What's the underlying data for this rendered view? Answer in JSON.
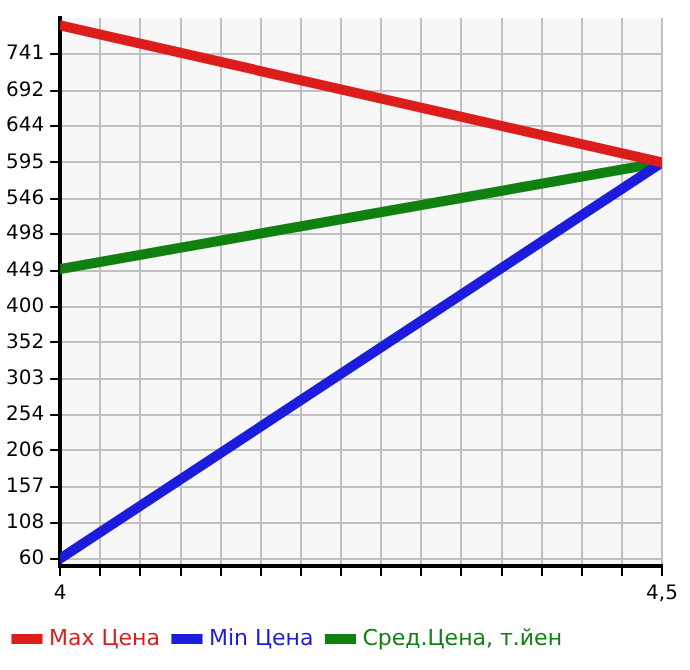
{
  "chart_data": {
    "type": "line",
    "x": [
      4,
      4.5
    ],
    "series": [
      {
        "name": "Max Цена",
        "color": "#dd1c1c",
        "values": [
          780,
          595
        ]
      },
      {
        "name": "Min Цена",
        "color": "#1c1cdd",
        "values": [
          60,
          595
        ]
      },
      {
        "name": "Сред.Цена, т.йен",
        "color": "#108010",
        "values": [
          451,
          595
        ]
      }
    ],
    "xlim": [
      4,
      4.5
    ],
    "xticks": [
      4,
      {
        "value": 4.0333,
        "label": null
      },
      {
        "value": 4.0667,
        "label": null
      },
      {
        "value": 4.1,
        "label": null
      },
      {
        "value": 4.1333,
        "label": null
      },
      {
        "value": 4.1667,
        "label": null
      },
      {
        "value": 4.2,
        "label": null
      },
      {
        "value": 4.2333,
        "label": null
      },
      {
        "value": 4.2667,
        "label": null
      },
      {
        "value": 4.3,
        "label": null
      },
      {
        "value": 4.3333,
        "label": null
      },
      {
        "value": 4.3667,
        "label": null
      },
      {
        "value": 4.4,
        "label": null
      },
      {
        "value": 4.4333,
        "label": null
      },
      {
        "value": 4.4667,
        "label": null
      },
      {
        "value": 4.5,
        "label": "4,5"
      }
    ],
    "ylim": [
      50,
      790
    ],
    "yticks": [
      60,
      108,
      157,
      206,
      254,
      303,
      352,
      400,
      449,
      498,
      546,
      595,
      644,
      692,
      741
    ],
    "grid": true,
    "legend": "bottom",
    "marker": "none",
    "line_style": "solid"
  }
}
